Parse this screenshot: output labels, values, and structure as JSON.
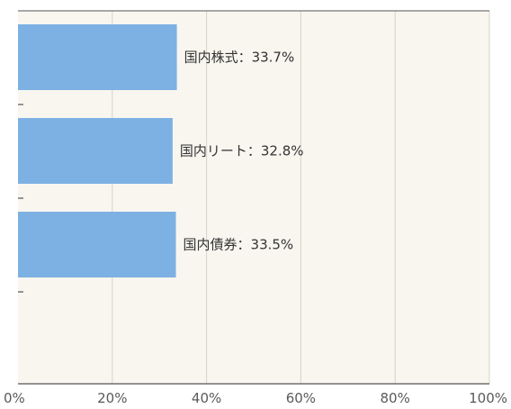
{
  "chart_data": {
    "type": "bar",
    "orientation": "horizontal",
    "categories": [
      "国内株式",
      "国内リート",
      "国内債券"
    ],
    "values": [
      33.7,
      32.8,
      33.5
    ],
    "data_labels": [
      "国内株式：33.7%",
      "国内リート：32.8%",
      "国内債券：33.5%"
    ],
    "x_ticks": [
      "0%",
      "20%",
      "40%",
      "60%",
      "80%",
      "100%"
    ],
    "xlim": [
      0,
      100
    ],
    "grid": true,
    "bar_color": "#7db1e3",
    "background_color": "#f8f6ef",
    "grid_color": "#d6d3c8"
  }
}
